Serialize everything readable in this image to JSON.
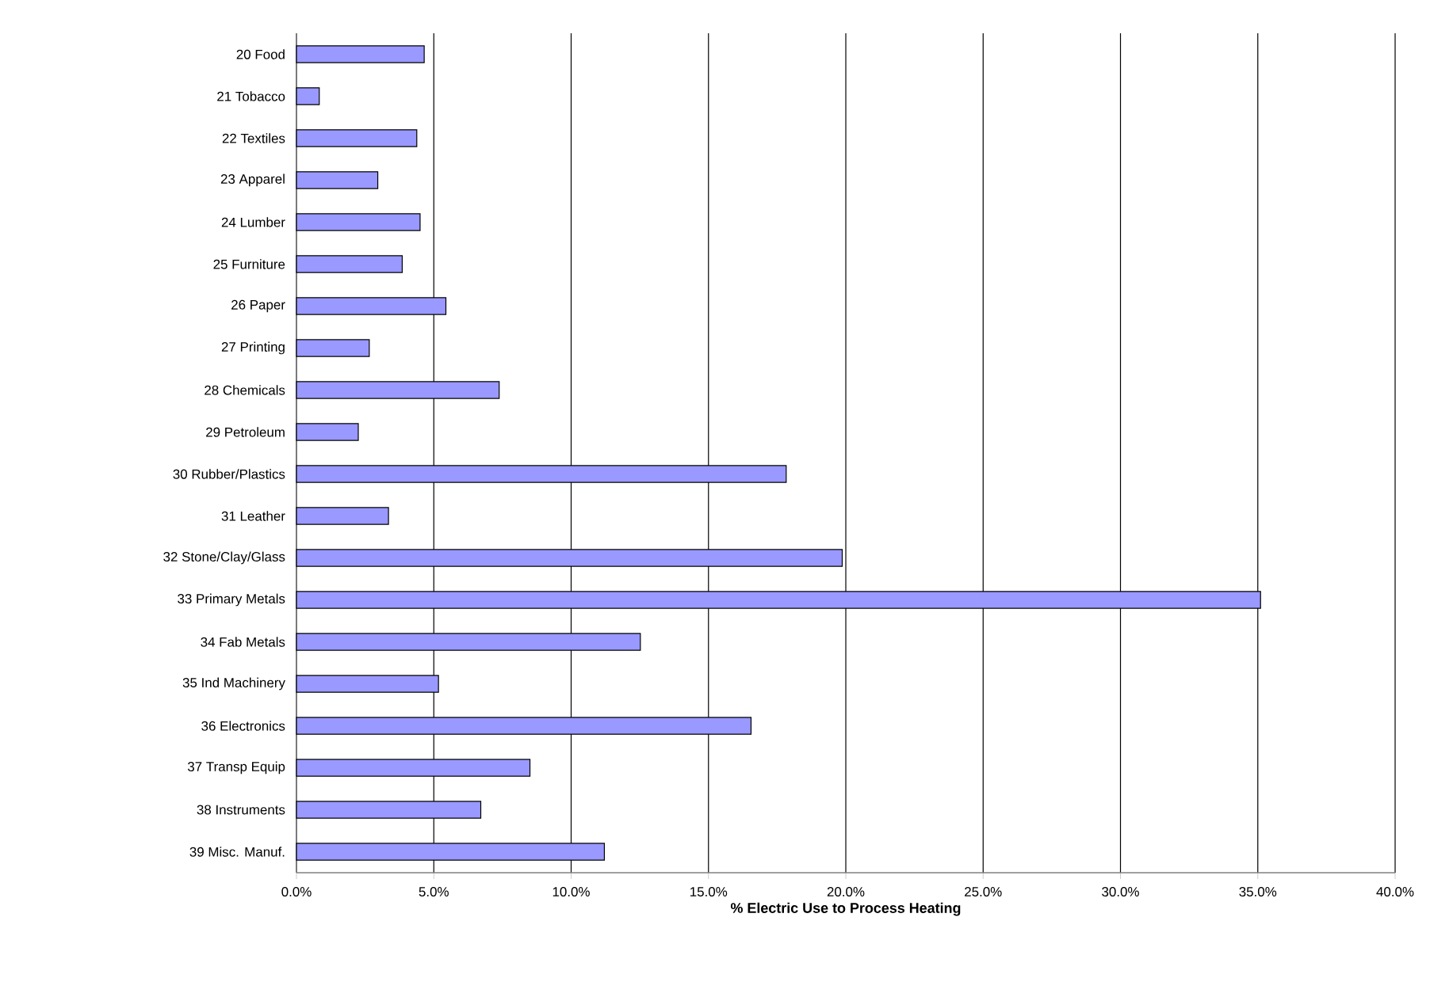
{
  "chart_data": {
    "type": "bar",
    "orientation": "horizontal",
    "xlabel": "% Electric Use to Process Heating",
    "categories": [
      "20 Food",
      "21 Tobacco",
      "22 Textiles",
      "23 Apparel",
      "24 Lumber",
      "25 Furniture",
      "26 Paper",
      "27 Printing",
      "28 Chemicals",
      "29 Petroleum",
      "30 Rubber/Plastics",
      "31 Leather",
      "32 Stone/Clay/Glass",
      "33 Primary Metals",
      "34 Fab Metals",
      "35 Ind Machinery",
      "36 Electronics",
      "37 Transp Equip",
      "38 Instruments",
      "39 Misc. Manuf."
    ],
    "values": [
      4.65,
      0.83,
      4.38,
      2.96,
      4.5,
      3.85,
      5.44,
      2.65,
      7.38,
      2.25,
      17.83,
      3.35,
      19.87,
      35.1,
      12.52,
      5.17,
      16.55,
      8.5,
      6.71,
      11.21
    ],
    "color": "#9999ff",
    "xlim": [
      0,
      40
    ],
    "xticks": [
      {
        "value": 0,
        "label": "0.0%"
      },
      {
        "value": 5,
        "label": "5.0%"
      },
      {
        "value": 10,
        "label": "10.0%"
      },
      {
        "value": 15,
        "label": "15.0%"
      },
      {
        "value": 20,
        "label": "20.0%"
      },
      {
        "value": 25,
        "label": "25.0%"
      },
      {
        "value": 30,
        "label": "30.0%"
      },
      {
        "value": 35,
        "label": "35.0%"
      },
      {
        "value": 40,
        "label": "40.0%"
      }
    ],
    "grid": "x"
  }
}
